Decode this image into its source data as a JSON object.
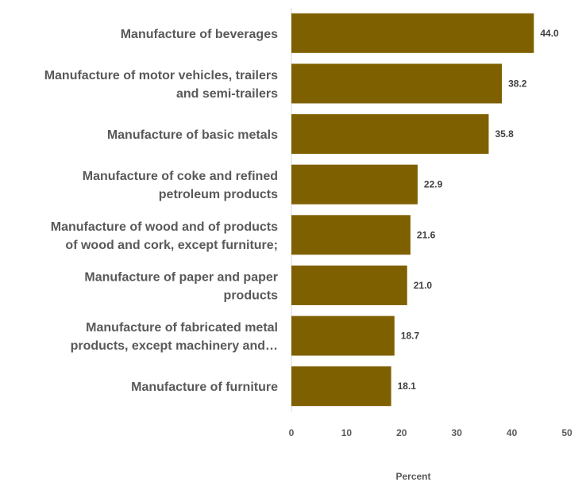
{
  "chart_data": {
    "type": "bar",
    "orientation": "horizontal",
    "categories": [
      "Manufacture of beverages",
      "Manufacture of motor vehicles, trailers and semi-trailers",
      "Manufacture of basic metals",
      "Manufacture of coke and refined petroleum products",
      "Manufacture of wood and of products of wood and cork, except furniture;",
      "Manufacture of paper and paper products",
      "Manufacture of fabricated metal products, except machinery and…",
      "Manufacture of furniture"
    ],
    "category_lines": [
      [
        "Manufacture of beverages"
      ],
      [
        "Manufacture of motor vehicles, trailers",
        "and semi-trailers"
      ],
      [
        "Manufacture of basic metals"
      ],
      [
        "Manufacture of coke and refined",
        "petroleum products"
      ],
      [
        "Manufacture of wood and of products",
        "of wood and cork, except furniture;"
      ],
      [
        "Manufacture of paper and paper",
        "products"
      ],
      [
        "Manufacture of fabricated metal",
        "products, except machinery and…"
      ],
      [
        "Manufacture of furniture"
      ]
    ],
    "values": [
      44.0,
      38.2,
      35.8,
      22.9,
      21.6,
      21.0,
      18.7,
      18.1
    ],
    "value_labels": [
      "44.0",
      "38.2",
      "35.8",
      "22.9",
      "21.6",
      "21.0",
      "18.7",
      "18.1"
    ],
    "xlabel": "Percent",
    "ylabel": "",
    "title": "",
    "xlim": [
      0,
      50
    ],
    "xticks": [
      "0",
      "10",
      "20",
      "30",
      "40",
      "50"
    ],
    "bar_color": "#7f6000",
    "grid": false,
    "legend": "none"
  }
}
